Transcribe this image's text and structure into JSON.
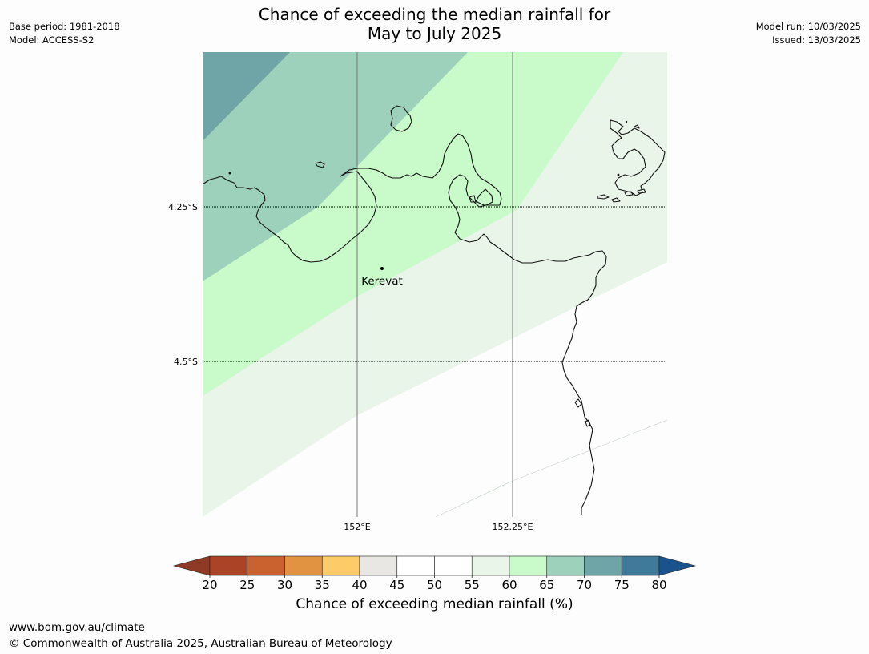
{
  "title": {
    "line1": "Chance of exceeding the median rainfall for",
    "line2": "May to July 2025"
  },
  "meta_left": {
    "base_period": "Base period: 1981-2018",
    "model": "Model: ACCESS-S2"
  },
  "meta_right": {
    "model_run": "Model run: 10/03/2025",
    "issued": "Issued: 13/03/2025"
  },
  "map": {
    "lat_labels": [
      "4.25°S",
      "4.5°S"
    ],
    "lon_labels": [
      "152°E",
      "152.25°E"
    ],
    "place_label": "Kerevat",
    "colors": {
      "band_70_75": "#70a5a7",
      "band_65_70": "#9dd1bb",
      "band_60_65": "#c8fbc9",
      "band_55_60": "#e9f5e9",
      "band_50_55": "#fdfdfd"
    }
  },
  "colorbar": {
    "label": "Chance of exceeding median rainfall (%)",
    "ticks": [
      "20",
      "25",
      "30",
      "35",
      "40",
      "45",
      "50",
      "55",
      "60",
      "65",
      "70",
      "75",
      "80"
    ],
    "colors": [
      "#ab4426",
      "#ca622f",
      "#e29342",
      "#fdcc68",
      "#e8e7e3",
      "#ffffff",
      "#ffffff",
      "#e9f5e9",
      "#c8fbc9",
      "#9dd1bb",
      "#70a5a7",
      "#3f7a9a"
    ],
    "under_color": "#8e3a26",
    "over_color": "#1a528b"
  },
  "footer": {
    "url": "www.bom.gov.au/climate",
    "copyright": "© Commonwealth of Australia 2025, Australian Bureau of Meteorology"
  }
}
